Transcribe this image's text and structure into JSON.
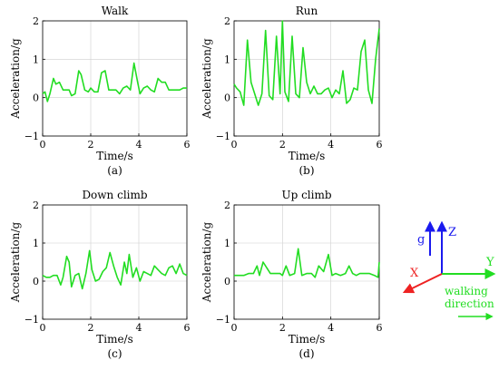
{
  "chart_data": [
    {
      "type": "line",
      "title": "Walk",
      "caption": "(a)",
      "xlabel": "Time/s",
      "ylabel": "Acceleration/g",
      "xlim": [
        0,
        6
      ],
      "ylim": [
        -1,
        2
      ],
      "xticks": [
        "0",
        "2",
        "4",
        "6"
      ],
      "yticks": [
        "−1",
        "0",
        "1",
        "2"
      ],
      "grid": true,
      "color": "#22dd22",
      "series": [
        {
          "x": [
            0,
            0.1,
            0.2,
            0.3,
            0.45,
            0.55,
            0.7,
            0.85,
            1.0,
            1.1,
            1.2,
            1.35,
            1.5,
            1.6,
            1.75,
            1.9,
            2.0,
            2.15,
            2.3,
            2.45,
            2.6,
            2.75,
            2.9,
            3.05,
            3.2,
            3.35,
            3.5,
            3.65,
            3.8,
            3.95,
            4.05,
            4.2,
            4.35,
            4.5,
            4.65,
            4.8,
            4.95,
            5.1,
            5.25,
            5.4,
            5.55,
            5.7,
            5.85,
            6.0
          ],
          "values": [
            0.1,
            0.15,
            -0.1,
            0.1,
            0.5,
            0.35,
            0.4,
            0.2,
            0.2,
            0.2,
            0.05,
            0.1,
            0.7,
            0.6,
            0.2,
            0.15,
            0.25,
            0.15,
            0.15,
            0.65,
            0.7,
            0.2,
            0.2,
            0.2,
            0.1,
            0.25,
            0.3,
            0.2,
            0.9,
            0.4,
            0.1,
            0.25,
            0.3,
            0.2,
            0.15,
            0.5,
            0.4,
            0.4,
            0.2,
            0.2,
            0.2,
            0.2,
            0.25,
            0.25
          ]
        }
      ]
    },
    {
      "type": "line",
      "title": "Run",
      "caption": "(b)",
      "xlabel": "Time/s",
      "ylabel": "Acceleration/g",
      "xlim": [
        0,
        6
      ],
      "ylim": [
        -1,
        2
      ],
      "xticks": [
        "0",
        "2",
        "4",
        "6"
      ],
      "yticks": [
        "−1",
        "0",
        "1",
        "2"
      ],
      "grid": true,
      "color": "#22dd22",
      "series": [
        {
          "x": [
            0,
            0.1,
            0.25,
            0.4,
            0.55,
            0.7,
            0.85,
            1.0,
            1.15,
            1.3,
            1.45,
            1.6,
            1.75,
            1.9,
            2.0,
            2.1,
            2.25,
            2.4,
            2.55,
            2.7,
            2.85,
            3.0,
            3.15,
            3.3,
            3.45,
            3.6,
            3.75,
            3.9,
            4.05,
            4.2,
            4.35,
            4.5,
            4.65,
            4.8,
            4.95,
            5.1,
            5.25,
            5.4,
            5.55,
            5.7,
            5.85,
            6.0
          ],
          "values": [
            0.35,
            0.25,
            0.15,
            -0.2,
            1.5,
            0.4,
            0.1,
            -0.2,
            0.1,
            1.75,
            0.05,
            -0.05,
            1.6,
            0.1,
            2.0,
            0.15,
            -0.1,
            1.6,
            0.1,
            0.0,
            1.3,
            0.4,
            0.1,
            0.3,
            0.1,
            0.1,
            0.2,
            0.25,
            0.0,
            0.2,
            0.1,
            0.7,
            -0.15,
            -0.05,
            0.25,
            0.2,
            1.2,
            1.5,
            0.2,
            -0.15,
            1.0,
            1.8
          ]
        }
      ]
    },
    {
      "type": "line",
      "title": "Down climb",
      "caption": "(c)",
      "xlabel": "Time/s",
      "ylabel": "Acceleration/g",
      "xlim": [
        0,
        6
      ],
      "ylim": [
        -1,
        2
      ],
      "xticks": [
        "0",
        "2",
        "4",
        "6"
      ],
      "yticks": [
        "−1",
        "0",
        "1",
        "2"
      ],
      "grid": true,
      "color": "#22dd22",
      "series": [
        {
          "x": [
            0,
            0.15,
            0.3,
            0.45,
            0.6,
            0.75,
            0.85,
            1.0,
            1.1,
            1.2,
            1.35,
            1.5,
            1.65,
            1.8,
            1.95,
            2.05,
            2.2,
            2.35,
            2.5,
            2.65,
            2.8,
            2.95,
            3.1,
            3.25,
            3.4,
            3.5,
            3.6,
            3.75,
            3.9,
            4.05,
            4.2,
            4.35,
            4.5,
            4.65,
            4.8,
            4.95,
            5.1,
            5.25,
            5.4,
            5.55,
            5.7,
            5.85,
            6.0
          ],
          "values": [
            0.15,
            0.1,
            0.1,
            0.15,
            0.15,
            -0.1,
            0.1,
            0.65,
            0.5,
            -0.15,
            0.15,
            0.2,
            -0.2,
            0.2,
            0.8,
            0.3,
            0.0,
            0.05,
            0.25,
            0.35,
            0.75,
            0.4,
            0.1,
            -0.1,
            0.5,
            0.2,
            0.7,
            0.1,
            0.35,
            0.0,
            0.25,
            0.2,
            0.15,
            0.4,
            0.3,
            0.2,
            0.15,
            0.35,
            0.4,
            0.2,
            0.45,
            0.2,
            0.15
          ]
        }
      ]
    },
    {
      "type": "line",
      "title": "Up climb",
      "caption": "(d)",
      "xlabel": "Time/s",
      "ylabel": "Acceleration/g",
      "xlim": [
        0,
        6
      ],
      "ylim": [
        -1,
        2
      ],
      "xticks": [
        "0",
        "2",
        "4",
        "6"
      ],
      "yticks": [
        "−1",
        "0",
        "1",
        "2"
      ],
      "grid": true,
      "color": "#22dd22",
      "series": [
        {
          "x": [
            0,
            0.2,
            0.4,
            0.6,
            0.8,
            0.95,
            1.05,
            1.2,
            1.35,
            1.5,
            1.7,
            1.9,
            2.0,
            2.15,
            2.3,
            2.5,
            2.65,
            2.8,
            3.0,
            3.2,
            3.35,
            3.5,
            3.7,
            3.9,
            4.05,
            4.2,
            4.4,
            4.6,
            4.75,
            4.9,
            5.05,
            5.2,
            5.4,
            5.6,
            5.8,
            5.95,
            6.0
          ],
          "values": [
            0.15,
            0.15,
            0.15,
            0.2,
            0.2,
            0.4,
            0.15,
            0.5,
            0.35,
            0.2,
            0.2,
            0.2,
            0.15,
            0.4,
            0.15,
            0.2,
            0.85,
            0.15,
            0.2,
            0.2,
            0.1,
            0.4,
            0.25,
            0.7,
            0.15,
            0.2,
            0.15,
            0.2,
            0.4,
            0.2,
            0.15,
            0.2,
            0.2,
            0.2,
            0.15,
            0.1,
            0.5
          ]
        }
      ]
    }
  ],
  "diagram": {
    "axis_z": "Z",
    "axis_y": "Y",
    "axis_x": "X",
    "gravity": "g",
    "direction_label_1": "walking",
    "direction_label_2": "direction",
    "colors": {
      "z": "#1a1aee",
      "y": "#22dd22",
      "x": "#ee2222",
      "g": "#1a1aee"
    }
  }
}
